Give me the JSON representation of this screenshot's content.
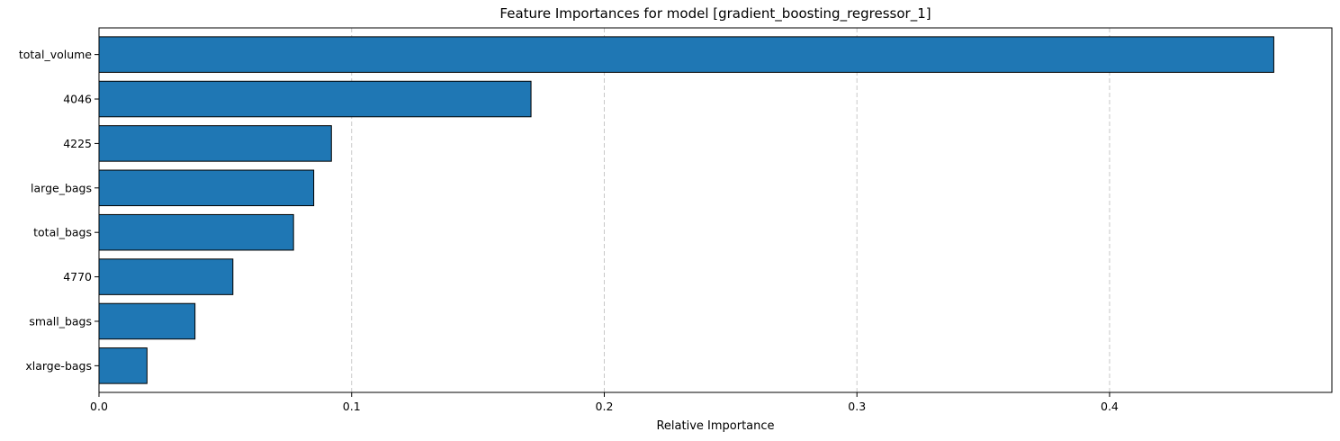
{
  "chart_data": {
    "type": "bar",
    "orientation": "horizontal",
    "title": "Feature Importances for model [gradient_boosting_regressor_1]",
    "xlabel": "Relative Importance",
    "ylabel": "",
    "categories": [
      "total_volume",
      "4046",
      "4225",
      "large_bags",
      "total_bags",
      "4770",
      "small_bags",
      "xlarge-bags"
    ],
    "values": [
      0.465,
      0.171,
      0.092,
      0.085,
      0.077,
      0.053,
      0.038,
      0.019
    ],
    "xlim": [
      0.0,
      0.488
    ],
    "xticks": [
      0.0,
      0.1,
      0.2,
      0.3,
      0.4
    ],
    "xtick_labels": [
      "0.0",
      "0.1",
      "0.2",
      "0.3",
      "0.4"
    ],
    "grid": {
      "x": true,
      "y": false,
      "style": "dashed"
    },
    "colors": {
      "bar_fill": "#1f77b4",
      "bar_edge": "#000000",
      "grid": "#c8c8c8",
      "axes": "#000000"
    }
  }
}
